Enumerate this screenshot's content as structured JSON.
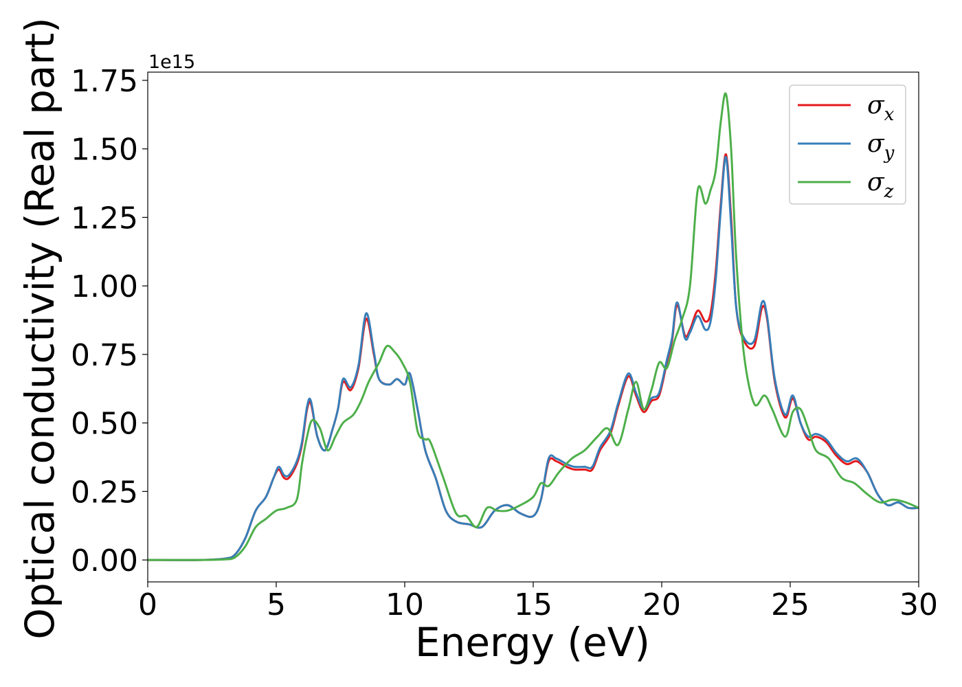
{
  "chart_data": {
    "type": "line",
    "xlabel": "Energy (eV)",
    "ylabel": "Optical conductivity (Real part)",
    "y_offset_text": "1e15",
    "xlim": [
      0,
      30
    ],
    "ylim": [
      -0.08,
      1.78
    ],
    "xticks": [
      0,
      5,
      10,
      15,
      20,
      25,
      30
    ],
    "xtick_labels": [
      "0",
      "5",
      "10",
      "15",
      "20",
      "25",
      "30"
    ],
    "yticks": [
      0.0,
      0.25,
      0.5,
      0.75,
      1.0,
      1.25,
      1.5,
      1.75
    ],
    "ytick_labels": [
      "0.00",
      "0.25",
      "0.50",
      "0.75",
      "1.00",
      "1.25",
      "1.50",
      "1.75"
    ],
    "grid": false,
    "legend_position": "top-right",
    "series": [
      {
        "name": "σx",
        "legend_symbol": "σ",
        "legend_sub": "x",
        "color": "#e41a1c",
        "x": [
          0,
          2,
          3,
          3.4,
          3.8,
          4.2,
          4.6,
          4.9,
          5.1,
          5.3,
          5.5,
          5.8,
          6.0,
          6.2,
          6.35,
          6.6,
          6.9,
          7.2,
          7.4,
          7.6,
          7.9,
          8.2,
          8.5,
          8.8,
          9.0,
          9.4,
          9.7,
          10.0,
          10.2,
          10.5,
          10.8,
          11.2,
          11.6,
          12.0,
          12.5,
          13.0,
          13.5,
          14.0,
          14.5,
          15.0,
          15.3,
          15.6,
          15.9,
          16.3,
          16.6,
          17.0,
          17.3,
          17.6,
          18.0,
          18.3,
          18.7,
          19.0,
          19.3,
          19.6,
          19.9,
          20.2,
          20.4,
          20.6,
          20.9,
          21.1,
          21.4,
          21.7,
          21.9,
          22.1,
          22.3,
          22.5,
          22.7,
          22.9,
          23.2,
          23.6,
          23.9,
          24.1,
          24.4,
          24.8,
          25.1,
          25.4,
          25.7,
          26.0,
          26.4,
          26.8,
          27.2,
          27.6,
          28.0,
          28.4,
          28.8,
          29.2,
          29.6,
          30.0
        ],
        "y": [
          0.0,
          0.0,
          0.005,
          0.02,
          0.08,
          0.18,
          0.23,
          0.3,
          0.33,
          0.3,
          0.3,
          0.35,
          0.42,
          0.55,
          0.57,
          0.45,
          0.4,
          0.48,
          0.55,
          0.65,
          0.62,
          0.7,
          0.88,
          0.75,
          0.66,
          0.64,
          0.66,
          0.64,
          0.68,
          0.55,
          0.4,
          0.3,
          0.18,
          0.14,
          0.13,
          0.12,
          0.18,
          0.2,
          0.17,
          0.16,
          0.22,
          0.36,
          0.36,
          0.34,
          0.33,
          0.33,
          0.33,
          0.4,
          0.46,
          0.56,
          0.67,
          0.6,
          0.54,
          0.58,
          0.6,
          0.72,
          0.8,
          0.93,
          0.82,
          0.84,
          0.91,
          0.87,
          0.9,
          1.05,
          1.3,
          1.48,
          1.25,
          0.92,
          0.8,
          0.78,
          0.92,
          0.88,
          0.65,
          0.52,
          0.59,
          0.5,
          0.44,
          0.45,
          0.43,
          0.38,
          0.35,
          0.36,
          0.32,
          0.24,
          0.2,
          0.21,
          0.19,
          0.19
        ]
      },
      {
        "name": "σy",
        "legend_symbol": "σ",
        "legend_sub": "y",
        "color": "#377eb8",
        "x": [
          0,
          2,
          3,
          3.4,
          3.8,
          4.2,
          4.6,
          4.9,
          5.1,
          5.3,
          5.5,
          5.8,
          6.0,
          6.2,
          6.35,
          6.6,
          6.9,
          7.2,
          7.4,
          7.6,
          7.9,
          8.2,
          8.5,
          8.8,
          9.0,
          9.4,
          9.7,
          10.0,
          10.2,
          10.5,
          10.8,
          11.2,
          11.6,
          12.0,
          12.5,
          13.0,
          13.5,
          14.0,
          14.5,
          15.0,
          15.3,
          15.6,
          15.9,
          16.3,
          16.6,
          17.0,
          17.3,
          17.6,
          18.0,
          18.3,
          18.7,
          19.0,
          19.3,
          19.6,
          19.9,
          20.2,
          20.4,
          20.6,
          20.9,
          21.1,
          21.4,
          21.7,
          21.9,
          22.1,
          22.3,
          22.5,
          22.7,
          22.9,
          23.2,
          23.6,
          23.9,
          24.1,
          24.4,
          24.8,
          25.1,
          25.4,
          25.7,
          26.0,
          26.4,
          26.8,
          27.2,
          27.6,
          28.0,
          28.4,
          28.8,
          29.2,
          29.6,
          30.0
        ],
        "y": [
          0.0,
          0.0,
          0.005,
          0.02,
          0.08,
          0.18,
          0.23,
          0.3,
          0.34,
          0.31,
          0.31,
          0.36,
          0.43,
          0.56,
          0.58,
          0.45,
          0.4,
          0.48,
          0.55,
          0.66,
          0.63,
          0.71,
          0.9,
          0.76,
          0.66,
          0.64,
          0.66,
          0.64,
          0.68,
          0.55,
          0.4,
          0.3,
          0.18,
          0.14,
          0.13,
          0.12,
          0.18,
          0.2,
          0.17,
          0.16,
          0.22,
          0.37,
          0.37,
          0.35,
          0.34,
          0.34,
          0.34,
          0.41,
          0.47,
          0.57,
          0.68,
          0.61,
          0.55,
          0.59,
          0.61,
          0.73,
          0.81,
          0.94,
          0.81,
          0.83,
          0.89,
          0.84,
          0.87,
          1.02,
          1.28,
          1.47,
          1.22,
          0.92,
          0.81,
          0.8,
          0.94,
          0.89,
          0.66,
          0.53,
          0.6,
          0.5,
          0.45,
          0.46,
          0.44,
          0.39,
          0.36,
          0.37,
          0.32,
          0.24,
          0.2,
          0.21,
          0.19,
          0.19
        ]
      },
      {
        "name": "σz",
        "legend_symbol": "σ",
        "legend_sub": "z",
        "color": "#4daf4a",
        "x": [
          0,
          2,
          3,
          3.4,
          3.8,
          4.2,
          4.6,
          5.0,
          5.4,
          5.8,
          6.0,
          6.2,
          6.4,
          6.7,
          7.0,
          7.3,
          7.6,
          8.0,
          8.3,
          8.6,
          9.0,
          9.3,
          9.6,
          9.9,
          10.2,
          10.5,
          10.8,
          11.0,
          11.5,
          12.0,
          12.4,
          12.8,
          13.2,
          13.6,
          14.0,
          14.5,
          15.0,
          15.3,
          15.6,
          16.0,
          16.5,
          17.0,
          17.5,
          17.9,
          18.3,
          18.7,
          19.0,
          19.3,
          19.6,
          19.9,
          20.2,
          20.5,
          20.8,
          21.1,
          21.4,
          21.7,
          21.9,
          22.1,
          22.3,
          22.5,
          22.7,
          22.9,
          23.2,
          23.6,
          24.0,
          24.3,
          24.8,
          25.1,
          25.4,
          25.7,
          26.0,
          26.5,
          27.0,
          27.5,
          28.0,
          28.5,
          29.0,
          29.5,
          30.0
        ],
        "y": [
          0.0,
          0.0,
          0.002,
          0.01,
          0.05,
          0.12,
          0.15,
          0.18,
          0.19,
          0.22,
          0.35,
          0.45,
          0.51,
          0.48,
          0.4,
          0.45,
          0.5,
          0.53,
          0.58,
          0.65,
          0.72,
          0.78,
          0.76,
          0.72,
          0.65,
          0.47,
          0.44,
          0.43,
          0.3,
          0.17,
          0.16,
          0.12,
          0.19,
          0.18,
          0.18,
          0.2,
          0.23,
          0.28,
          0.27,
          0.32,
          0.37,
          0.4,
          0.45,
          0.48,
          0.42,
          0.55,
          0.65,
          0.55,
          0.62,
          0.72,
          0.7,
          0.8,
          0.88,
          1.0,
          1.35,
          1.3,
          1.35,
          1.42,
          1.6,
          1.7,
          1.5,
          1.1,
          0.75,
          0.57,
          0.6,
          0.55,
          0.45,
          0.54,
          0.55,
          0.48,
          0.4,
          0.37,
          0.3,
          0.28,
          0.24,
          0.21,
          0.22,
          0.21,
          0.19
        ]
      }
    ]
  }
}
